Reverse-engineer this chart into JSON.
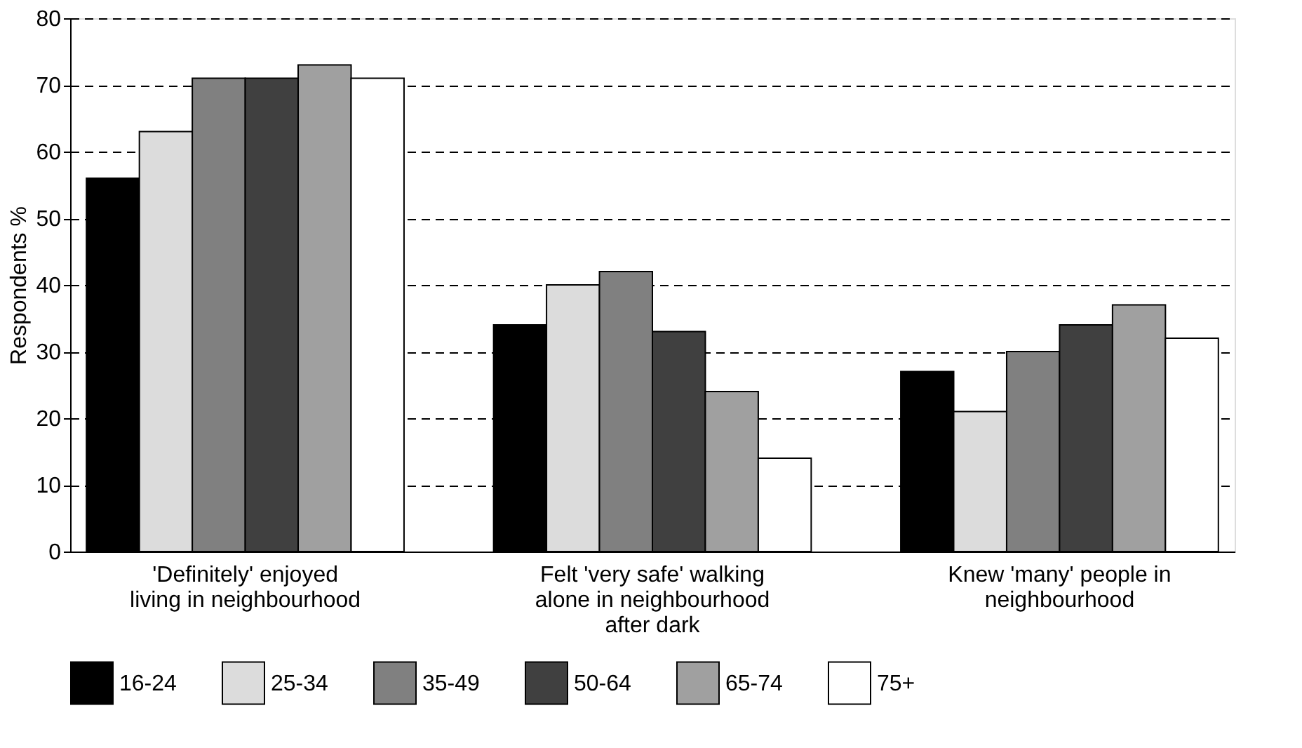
{
  "chart_data": {
    "type": "bar",
    "ylabel": "Respondents %",
    "categories": [
      "'Definitely' enjoyed living in neighbourhood",
      "Felt 'very safe' walking alone in neighbourhood after dark",
      "Knew 'many' people in neighbourhood"
    ],
    "series": [
      {
        "name": "16-24",
        "color": "#000000",
        "values": [
          56,
          34,
          27
        ]
      },
      {
        "name": "25-34",
        "color": "#dcdcdc",
        "values": [
          63,
          40,
          21
        ]
      },
      {
        "name": "35-49",
        "color": "#808080",
        "values": [
          71,
          42,
          30
        ]
      },
      {
        "name": "50-64",
        "color": "#404040",
        "values": [
          71,
          33,
          34
        ]
      },
      {
        "name": "65-74",
        "color": "#a0a0a0",
        "values": [
          73,
          24,
          37
        ]
      },
      {
        "name": "75+",
        "color": "#ffffff",
        "values": [
          71,
          14,
          32
        ]
      }
    ],
    "ylim": [
      0,
      80
    ],
    "yticks": [
      0,
      10,
      20,
      30,
      40,
      50,
      60,
      70,
      80
    ],
    "grid": "y",
    "legend": "bottom"
  }
}
